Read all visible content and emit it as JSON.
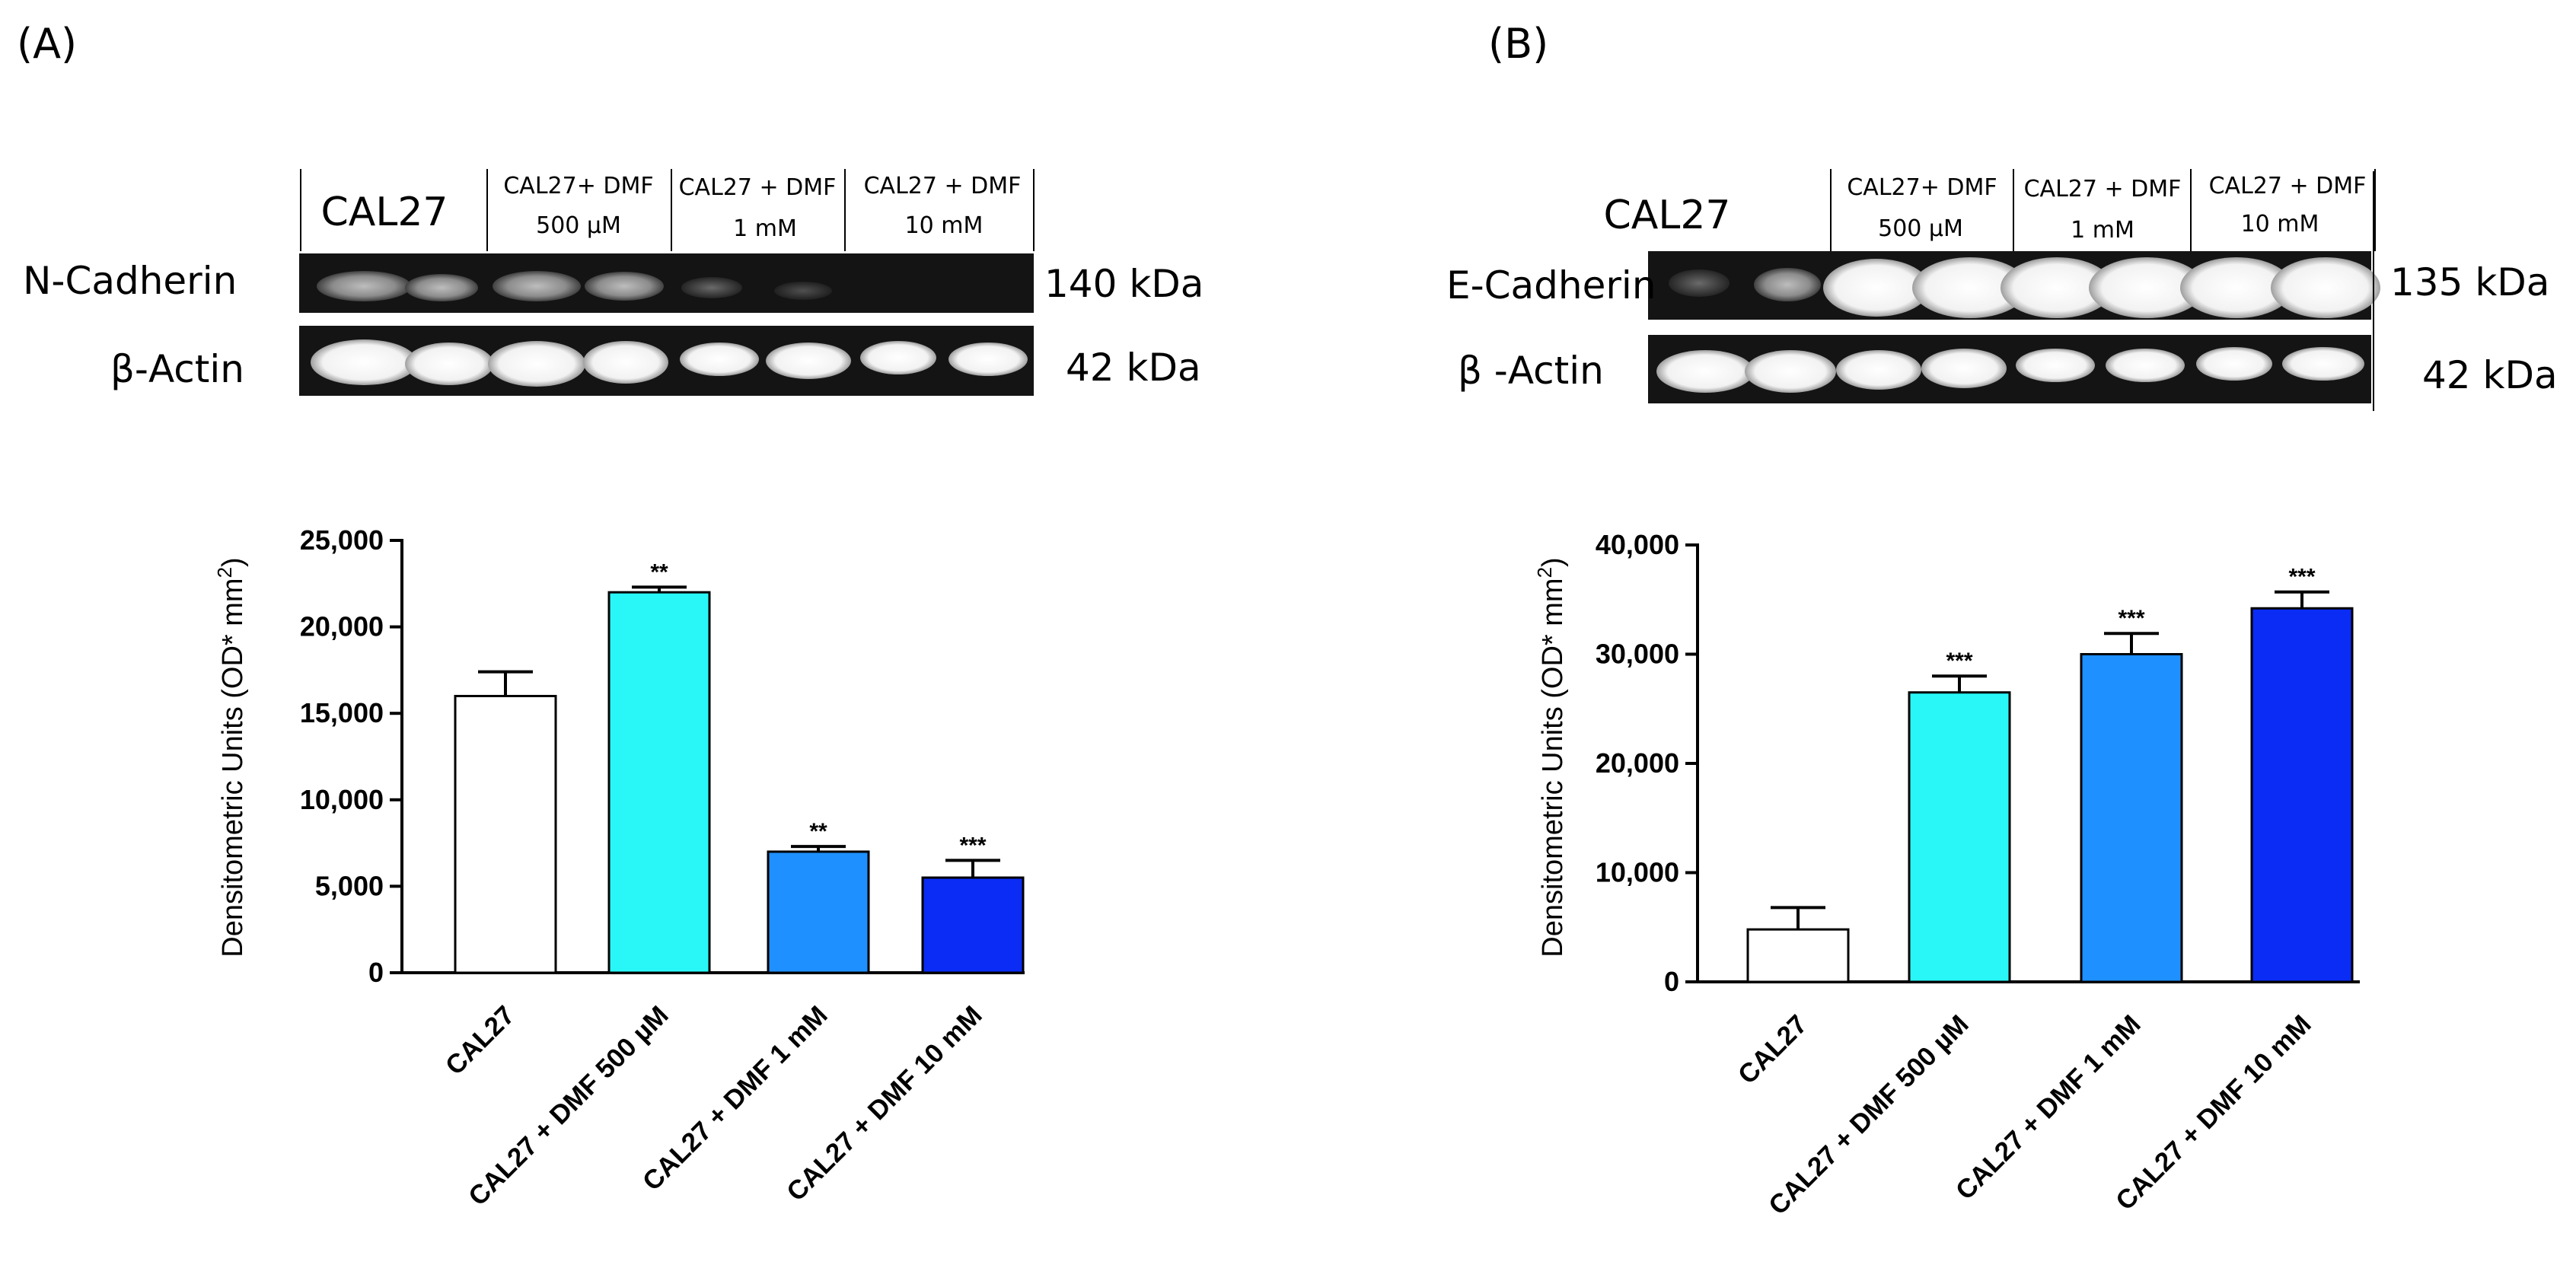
{
  "panels": [
    {
      "label": "(A)",
      "blot": {
        "lane_headers": [
          {
            "lines": [
              "CAL27"
            ]
          },
          {
            "lines": [
              "CAL27+ DMF",
              "500 µM"
            ]
          },
          {
            "lines": [
              "CAL27 + DMF",
              "1 mM"
            ]
          },
          {
            "lines": [
              "CAL27 + DMF",
              "10 mM"
            ]
          }
        ],
        "rows": [
          {
            "name": "N-Cadherin",
            "weight": "140 kDa"
          },
          {
            "name": "β-Actin",
            "weight": "42 kDa"
          }
        ]
      }
    },
    {
      "label": "(B)",
      "blot": {
        "lane_headers": [
          {
            "lines": [
              "CAL27"
            ]
          },
          {
            "lines": [
              "CAL27+ DMF",
              "500 µM"
            ]
          },
          {
            "lines": [
              "CAL27 + DMF",
              "1 mM"
            ]
          },
          {
            "lines": [
              "CAL27 + DMF",
              "10 mM"
            ]
          }
        ],
        "rows": [
          {
            "name": "E-Cadherin",
            "weight": "135  kDa"
          },
          {
            "name": "β -Actin",
            "weight": "42 kDa"
          }
        ]
      }
    }
  ],
  "colors": {
    "control": "#ffffff",
    "dmf_500": "#29f7f7",
    "dmf_1": "#1e90ff",
    "dmf_10": "#0a2cf5"
  },
  "chart_data": [
    {
      "type": "bar",
      "panel": "(A)",
      "title": "",
      "ylabel": "Densitometric Units (OD* mm²)",
      "categories": [
        "CAL27",
        "CAL27 + DMF 500 µM",
        "CAL27 + DMF 1 mM",
        "CAL27 + DMF 10 mM"
      ],
      "values": [
        16000,
        22000,
        7000,
        5500
      ],
      "errors": [
        1400,
        300,
        300,
        1000
      ],
      "significance": [
        "",
        "**",
        "**",
        "***"
      ],
      "ylim": [
        0,
        25000
      ],
      "yticks": [
        0,
        5000,
        10000,
        15000,
        20000,
        25000
      ],
      "ytick_labels": [
        "0",
        "5,000",
        "10,000",
        "15,000",
        "20,000",
        "25,000"
      ],
      "bar_colors": [
        "#ffffff",
        "#29f7f7",
        "#1e90ff",
        "#0a2cf5"
      ]
    },
    {
      "type": "bar",
      "panel": "(B)",
      "title": "",
      "ylabel": "Densitometric Units (OD* mm²)",
      "categories": [
        "CAL27",
        "CAL27 + DMF 500 µM",
        "CAL27 + DMF 1 mM",
        "CAL27 + DMF 10 mM"
      ],
      "values": [
        4800,
        26500,
        30000,
        34200
      ],
      "errors": [
        2000,
        1500,
        1900,
        1500
      ],
      "significance": [
        "",
        "***",
        "***",
        "***"
      ],
      "ylim": [
        0,
        40000
      ],
      "yticks": [
        0,
        10000,
        20000,
        30000,
        40000
      ],
      "ytick_labels": [
        "0",
        "10,000",
        "20,000",
        "30,000",
        "40,000"
      ],
      "bar_colors": [
        "#ffffff",
        "#29f7f7",
        "#1e90ff",
        "#0a2cf5"
      ]
    }
  ]
}
